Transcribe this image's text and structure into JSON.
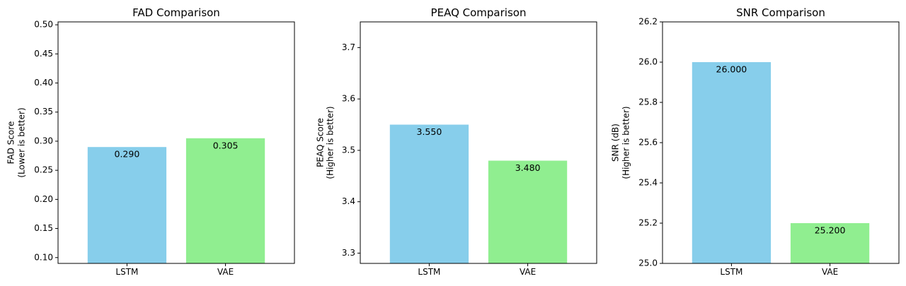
{
  "chart_data": [
    {
      "type": "bar",
      "title": "FAD Comparison",
      "categories": [
        "LSTM",
        "VAE"
      ],
      "values": [
        0.29,
        0.305
      ],
      "value_labels": [
        "0.290",
        "0.305"
      ],
      "colors": [
        "#87ceeb",
        "#90ee90"
      ],
      "ylabel_lines": [
        "FAD Score",
        "(Lower is better)"
      ],
      "ylim": [
        0.09,
        0.505
      ],
      "yticks": [
        0.1,
        0.15,
        0.2,
        0.25,
        0.3,
        0.35,
        0.4,
        0.45,
        0.5
      ],
      "ytick_labels": [
        "0.10",
        "0.15",
        "0.20",
        "0.25",
        "0.30",
        "0.35",
        "0.40",
        "0.45",
        "0.50"
      ],
      "grid": false
    },
    {
      "type": "bar",
      "title": "PEAQ Comparison",
      "categories": [
        "LSTM",
        "VAE"
      ],
      "values": [
        3.55,
        3.48
      ],
      "value_labels": [
        "3.550",
        "3.480"
      ],
      "colors": [
        "#87ceeb",
        "#90ee90"
      ],
      "ylabel_lines": [
        "PEAQ Score",
        "(Higher is better)"
      ],
      "ylim": [
        3.28,
        3.75
      ],
      "yticks": [
        3.3,
        3.4,
        3.5,
        3.6,
        3.7
      ],
      "ytick_labels": [
        "3.3",
        "3.4",
        "3.5",
        "3.6",
        "3.7"
      ],
      "grid": false
    },
    {
      "type": "bar",
      "title": "SNR Comparison",
      "categories": [
        "LSTM",
        "VAE"
      ],
      "values": [
        26.0,
        25.2
      ],
      "value_labels": [
        "26.000",
        "25.200"
      ],
      "colors": [
        "#87ceeb",
        "#90ee90"
      ],
      "ylabel_lines": [
        "SNR (dB)",
        "(Higher is better)"
      ],
      "ylim": [
        25.0,
        26.2
      ],
      "yticks": [
        25.0,
        25.2,
        25.4,
        25.6,
        25.8,
        26.0,
        26.2
      ],
      "ytick_labels": [
        "25.0",
        "25.2",
        "25.4",
        "25.6",
        "25.8",
        "26.0",
        "26.2"
      ],
      "grid": false
    }
  ]
}
